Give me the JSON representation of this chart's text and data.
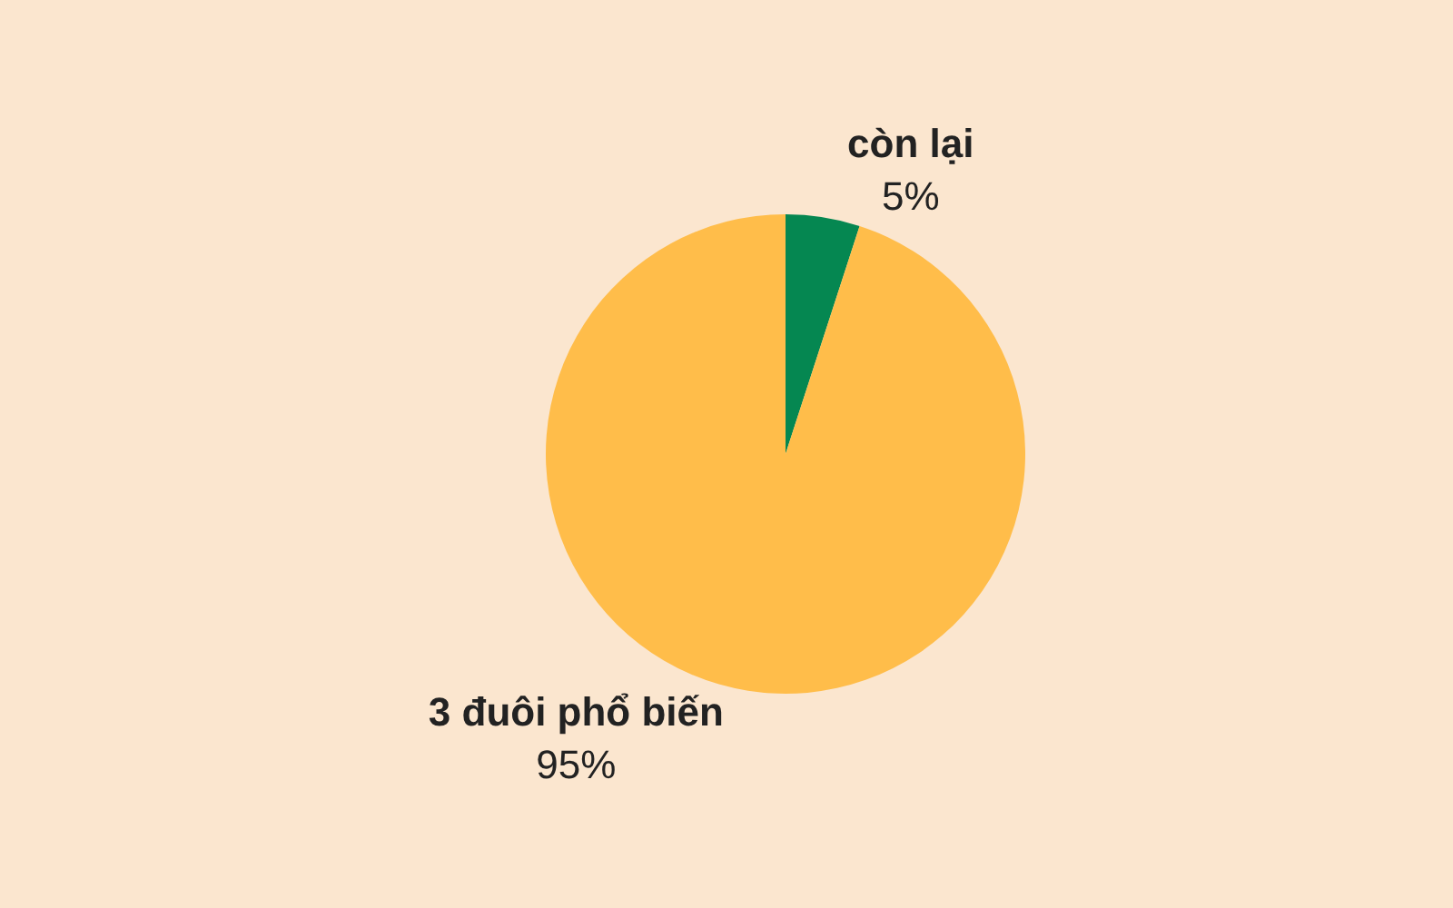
{
  "chart_data": {
    "type": "pie",
    "categories": [
      "còn lại",
      "3 đuôi phổ biến"
    ],
    "values": [
      5,
      95
    ],
    "colors": [
      "#058751",
      "#ffbd4a"
    ],
    "value_labels": [
      "5%",
      "95%"
    ],
    "legend": false
  }
}
